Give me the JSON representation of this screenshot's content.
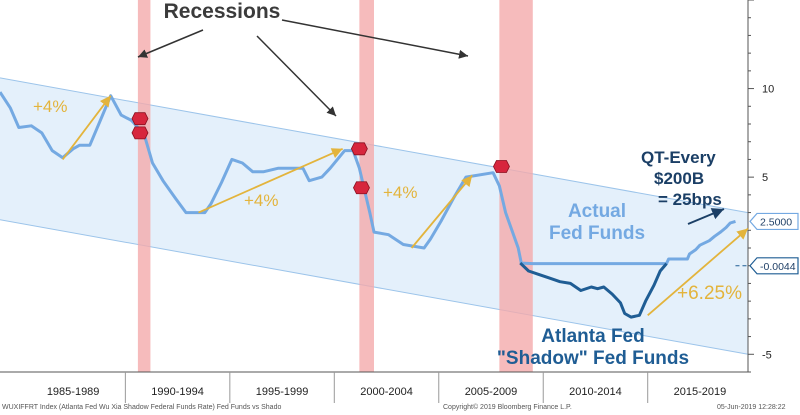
{
  "chart_data": {
    "type": "line",
    "title": "",
    "headline": "Recessions",
    "xlabel": "",
    "ylabel": "",
    "x_tick_labels": [
      "1985-1989",
      "1990-1994",
      "1995-1999",
      "2000-2004",
      "2005-2009",
      "2010-2014",
      "2015-2019"
    ],
    "y_ticks": [
      {
        "value": 10,
        "label": "10"
      },
      {
        "value": 5,
        "label": "5"
      },
      {
        "value": -5,
        "label": "-5"
      }
    ],
    "xlim": [
      1984.0,
      2019.8
    ],
    "ylim": [
      -6.0,
      15.0
    ],
    "grid": false,
    "recessions": [
      [
        1990.6,
        1991.2
      ],
      [
        2001.2,
        2001.9
      ],
      [
        2007.9,
        2009.5
      ]
    ],
    "channel": {
      "lower": [
        [
          1984.0,
          2.6
        ],
        [
          2019.8,
          -5.0
        ]
      ],
      "upper": [
        [
          1984.0,
          10.6
        ],
        [
          2019.8,
          3.0
        ]
      ],
      "fill": "#e4f0fb",
      "edge": "#9cc4ea"
    },
    "series": [
      {
        "name": "Actual Fed Funds",
        "color": "#74a9e2",
        "points": [
          [
            1984.0,
            9.8
          ],
          [
            1984.5,
            8.9
          ],
          [
            1984.9,
            7.8
          ],
          [
            1985.5,
            7.9
          ],
          [
            1986.0,
            7.5
          ],
          [
            1986.5,
            6.5
          ],
          [
            1987.0,
            6.1
          ],
          [
            1987.5,
            6.6
          ],
          [
            1987.8,
            6.8
          ],
          [
            1988.3,
            6.8
          ],
          [
            1988.8,
            8.2
          ],
          [
            1989.3,
            9.6
          ],
          [
            1989.8,
            8.5
          ],
          [
            1990.3,
            8.2
          ],
          [
            1990.9,
            7.4
          ],
          [
            1991.3,
            5.8
          ],
          [
            1991.8,
            4.8
          ],
          [
            1992.4,
            3.8
          ],
          [
            1992.9,
            3.0
          ],
          [
            1993.8,
            3.0
          ],
          [
            1994.1,
            3.5
          ],
          [
            1994.6,
            4.7
          ],
          [
            1995.1,
            6.0
          ],
          [
            1995.6,
            5.8
          ],
          [
            1996.1,
            5.3
          ],
          [
            1996.6,
            5.3
          ],
          [
            1997.3,
            5.5
          ],
          [
            1997.9,
            5.5
          ],
          [
            1998.5,
            5.5
          ],
          [
            1998.8,
            4.8
          ],
          [
            1999.4,
            5.0
          ],
          [
            1999.8,
            5.5
          ],
          [
            2000.5,
            6.5
          ],
          [
            2000.9,
            6.5
          ],
          [
            2001.2,
            5.5
          ],
          [
            2001.7,
            3.0
          ],
          [
            2001.9,
            1.9
          ],
          [
            2002.6,
            1.75
          ],
          [
            2003.3,
            1.2
          ],
          [
            2004.3,
            1.0
          ],
          [
            2004.6,
            1.5
          ],
          [
            2005.1,
            2.5
          ],
          [
            2005.7,
            3.8
          ],
          [
            2006.3,
            5.0
          ],
          [
            2007.6,
            5.25
          ],
          [
            2007.9,
            4.5
          ],
          [
            2008.2,
            3.0
          ],
          [
            2008.5,
            2.0
          ],
          [
            2008.8,
            1.0
          ],
          [
            2008.95,
            0.15
          ],
          [
            2009.5,
            0.12
          ],
          [
            2012.0,
            0.12
          ],
          [
            2014.0,
            0.12
          ],
          [
            2015.9,
            0.12
          ],
          [
            2016.0,
            0.38
          ],
          [
            2016.9,
            0.38
          ],
          [
            2017.0,
            0.66
          ],
          [
            2017.3,
            0.91
          ],
          [
            2017.5,
            1.16
          ],
          [
            2017.95,
            1.41
          ],
          [
            2018.2,
            1.66
          ],
          [
            2018.5,
            1.91
          ],
          [
            2018.75,
            2.16
          ],
          [
            2018.95,
            2.41
          ],
          [
            2019.2,
            2.5
          ]
        ]
      },
      {
        "name": "Atlanta Fed \"Shadow\" Fed Funds",
        "color": "#1f5d94",
        "points": [
          [
            2008.9,
            0.15
          ],
          [
            2009.3,
            -0.3
          ],
          [
            2009.8,
            -0.5
          ],
          [
            2010.3,
            -0.7
          ],
          [
            2010.8,
            -0.9
          ],
          [
            2011.3,
            -1.0
          ],
          [
            2011.8,
            -1.4
          ],
          [
            2012.3,
            -1.2
          ],
          [
            2012.6,
            -1.3
          ],
          [
            2012.9,
            -1.2
          ],
          [
            2013.3,
            -1.6
          ],
          [
            2013.7,
            -2.1
          ],
          [
            2013.9,
            -2.7
          ],
          [
            2014.2,
            -2.9
          ],
          [
            2014.6,
            -2.8
          ],
          [
            2014.9,
            -2.0
          ],
          [
            2015.3,
            -1.1
          ],
          [
            2015.6,
            -0.3
          ],
          [
            2015.9,
            0.12
          ]
        ]
      }
    ],
    "value_tags": [
      {
        "label": "2.5000",
        "value": 2.5,
        "color": "#74a9e2"
      },
      {
        "label": "-0.0044",
        "value": -0.0044,
        "color": "#1f5d94"
      }
    ],
    "annotations": [
      {
        "text": "+4%",
        "color": "#e3b43c",
        "arrow": [
          [
            1987.0,
            6.0
          ],
          [
            1989.3,
            9.6
          ]
        ]
      },
      {
        "text": "+4%",
        "color": "#e3b43c",
        "arrow": [
          [
            1993.5,
            3.0
          ],
          [
            2000.4,
            6.6
          ]
        ]
      },
      {
        "text": "+4%",
        "color": "#e3b43c",
        "arrow": [
          [
            2003.7,
            1.0
          ],
          [
            2006.6,
            5.1
          ]
        ]
      },
      {
        "text": "+6.25%",
        "color": "#e3b43c",
        "arrow": [
          [
            2015.0,
            -2.8
          ],
          [
            2019.8,
            2.1
          ]
        ]
      },
      {
        "text": "Actual",
        "color": "#74a9e2"
      },
      {
        "text": "Fed Funds",
        "color": "#74a9e2"
      },
      {
        "text": "Atlanta Fed",
        "color": "#1f5d94"
      },
      {
        "text": "\"Shadow\" Fed Funds",
        "color": "#1f5d94"
      },
      {
        "text": "QT-Every",
        "color": "#1b3f66"
      },
      {
        "text": "$200B",
        "color": "#1b3f66"
      },
      {
        "text": "= 25bps",
        "color": "#1b3f66"
      }
    ],
    "recession_markers": [
      {
        "x": 1990.7,
        "y": 7.5
      },
      {
        "x": 1990.7,
        "y": 8.3
      },
      {
        "x": 2001.2,
        "y": 6.6
      },
      {
        "x": 2001.3,
        "y": 4.4
      },
      {
        "x": 2008.0,
        "y": 5.6
      }
    ]
  },
  "footer": {
    "left": "WUXIFFRT Index (Atlanta Fed Wu Xia Shadow Federal Funds Rate) Fed Funds vs Shado",
    "center": "Copyright© 2019 Bloomberg Finance L.P.",
    "right": "05-Jun-2019 12:28:22"
  }
}
